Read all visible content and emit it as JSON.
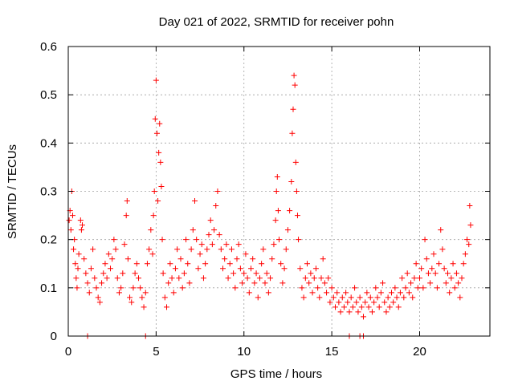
{
  "chart_data": {
    "type": "scatter",
    "title": "Day 021 of 2022, SRMTID for receiver pohn",
    "xlabel": "GPS time / hours",
    "ylabel": "SRMTID / TECUs",
    "xlim": [
      0,
      24
    ],
    "ylim": [
      0,
      0.6
    ],
    "xticks": [
      0,
      5,
      10,
      15,
      20
    ],
    "xtick_labels": [
      "0",
      "5",
      "10",
      "15",
      "20"
    ],
    "yticks": [
      0,
      0.1,
      0.2,
      0.3,
      0.4,
      0.5,
      0.6
    ],
    "ytick_labels": [
      "0",
      "0.1",
      "0.2",
      "0.3",
      "0.4",
      "0.5",
      "0.6"
    ],
    "grid": true,
    "marker": "+",
    "color": "#ff0000",
    "series": [
      {
        "name": "SRMTID",
        "points": [
          [
            0.05,
            0.24
          ],
          [
            0.1,
            0.26
          ],
          [
            0.15,
            0.22
          ],
          [
            0.2,
            0.3
          ],
          [
            0.25,
            0.25
          ],
          [
            0.3,
            0.18
          ],
          [
            0.35,
            0.2
          ],
          [
            0.4,
            0.15
          ],
          [
            0.45,
            0.12
          ],
          [
            0.5,
            0.1
          ],
          [
            0.55,
            0.14
          ],
          [
            0.6,
            0.17
          ],
          [
            0.7,
            0.24
          ],
          [
            0.75,
            0.22
          ],
          [
            0.8,
            0.23
          ],
          [
            0.9,
            0.16
          ],
          [
            1.0,
            0.13
          ],
          [
            1.1,
            0.11
          ],
          [
            1.2,
            0.09
          ],
          [
            1.3,
            0.14
          ],
          [
            1.4,
            0.18
          ],
          [
            1.5,
            0.12
          ],
          [
            1.6,
            0.1
          ],
          [
            1.7,
            0.08
          ],
          [
            1.8,
            0.07
          ],
          [
            1.9,
            0.11
          ],
          [
            2.0,
            0.13
          ],
          [
            2.1,
            0.15
          ],
          [
            2.2,
            0.12
          ],
          [
            2.3,
            0.17
          ],
          [
            2.4,
            0.14
          ],
          [
            2.5,
            0.16
          ],
          [
            2.6,
            0.2
          ],
          [
            2.7,
            0.18
          ],
          [
            2.8,
            0.12
          ],
          [
            2.9,
            0.09
          ],
          [
            3.0,
            0.1
          ],
          [
            3.1,
            0.13
          ],
          [
            3.2,
            0.19
          ],
          [
            3.3,
            0.25
          ],
          [
            3.35,
            0.28
          ],
          [
            3.4,
            0.16
          ],
          [
            3.5,
            0.08
          ],
          [
            3.6,
            0.07
          ],
          [
            3.7,
            0.1
          ],
          [
            3.8,
            0.13
          ],
          [
            3.9,
            0.15
          ],
          [
            4.0,
            0.12
          ],
          [
            4.1,
            0.1
          ],
          [
            4.2,
            0.08
          ],
          [
            4.3,
            0.06
          ],
          [
            4.4,
            0.09
          ],
          [
            4.5,
            0.15
          ],
          [
            4.6,
            0.18
          ],
          [
            4.7,
            0.22
          ],
          [
            4.8,
            0.17
          ],
          [
            4.85,
            0.25
          ],
          [
            4.9,
            0.3
          ],
          [
            4.95,
            0.45
          ],
          [
            5.0,
            0.53
          ],
          [
            5.05,
            0.42
          ],
          [
            5.1,
            0.28
          ],
          [
            5.15,
            0.38
          ],
          [
            5.2,
            0.44
          ],
          [
            5.25,
            0.36
          ],
          [
            5.3,
            0.31
          ],
          [
            5.35,
            0.2
          ],
          [
            5.4,
            0.13
          ],
          [
            5.5,
            0.08
          ],
          [
            5.6,
            0.06
          ],
          [
            5.7,
            0.11
          ],
          [
            5.8,
            0.15
          ],
          [
            5.9,
            0.12
          ],
          [
            6.0,
            0.09
          ],
          [
            6.1,
            0.14
          ],
          [
            6.2,
            0.18
          ],
          [
            6.3,
            0.12
          ],
          [
            6.4,
            0.16
          ],
          [
            6.5,
            0.1
          ],
          [
            6.6,
            0.13
          ],
          [
            6.7,
            0.2
          ],
          [
            6.8,
            0.15
          ],
          [
            6.9,
            0.11
          ],
          [
            7.0,
            0.18
          ],
          [
            7.1,
            0.22
          ],
          [
            7.2,
            0.28
          ],
          [
            7.3,
            0.2
          ],
          [
            7.4,
            0.14
          ],
          [
            7.5,
            0.17
          ],
          [
            7.6,
            0.19
          ],
          [
            7.7,
            0.12
          ],
          [
            7.8,
            0.15
          ],
          [
            7.9,
            0.18
          ],
          [
            8.0,
            0.21
          ],
          [
            8.1,
            0.24
          ],
          [
            8.2,
            0.19
          ],
          [
            8.3,
            0.22
          ],
          [
            8.4,
            0.27
          ],
          [
            8.5,
            0.3
          ],
          [
            8.6,
            0.21
          ],
          [
            8.7,
            0.18
          ],
          [
            8.8,
            0.14
          ],
          [
            8.9,
            0.16
          ],
          [
            9.0,
            0.19
          ],
          [
            9.1,
            0.12
          ],
          [
            9.2,
            0.15
          ],
          [
            9.3,
            0.18
          ],
          [
            9.4,
            0.13
          ],
          [
            9.5,
            0.1
          ],
          [
            9.6,
            0.16
          ],
          [
            9.7,
            0.19
          ],
          [
            9.8,
            0.14
          ],
          [
            9.9,
            0.11
          ],
          [
            10.0,
            0.13
          ],
          [
            10.1,
            0.17
          ],
          [
            10.2,
            0.12
          ],
          [
            10.3,
            0.09
          ],
          [
            10.4,
            0.14
          ],
          [
            10.5,
            0.16
          ],
          [
            10.6,
            0.11
          ],
          [
            10.7,
            0.13
          ],
          [
            10.8,
            0.08
          ],
          [
            10.9,
            0.12
          ],
          [
            11.0,
            0.15
          ],
          [
            11.1,
            0.18
          ],
          [
            11.2,
            0.11
          ],
          [
            11.3,
            0.13
          ],
          [
            11.4,
            0.09
          ],
          [
            11.5,
            0.12
          ],
          [
            11.6,
            0.16
          ],
          [
            11.7,
            0.19
          ],
          [
            11.8,
            0.24
          ],
          [
            11.85,
            0.3
          ],
          [
            11.9,
            0.33
          ],
          [
            11.95,
            0.26
          ],
          [
            12.0,
            0.2
          ],
          [
            12.1,
            0.15
          ],
          [
            12.2,
            0.11
          ],
          [
            12.3,
            0.14
          ],
          [
            12.4,
            0.18
          ],
          [
            12.5,
            0.22
          ],
          [
            12.6,
            0.26
          ],
          [
            12.7,
            0.32
          ],
          [
            12.75,
            0.42
          ],
          [
            12.8,
            0.47
          ],
          [
            12.85,
            0.54
          ],
          [
            12.9,
            0.52
          ],
          [
            12.95,
            0.36
          ],
          [
            13.0,
            0.3
          ],
          [
            13.05,
            0.25
          ],
          [
            13.1,
            0.2
          ],
          [
            13.2,
            0.14
          ],
          [
            13.3,
            0.1
          ],
          [
            13.4,
            0.08
          ],
          [
            13.5,
            0.12
          ],
          [
            13.6,
            0.15
          ],
          [
            13.7,
            0.11
          ],
          [
            13.8,
            0.13
          ],
          [
            13.9,
            0.09
          ],
          [
            14.0,
            0.12
          ],
          [
            14.1,
            0.14
          ],
          [
            14.2,
            0.1
          ],
          [
            14.3,
            0.08
          ],
          [
            14.4,
            0.12
          ],
          [
            14.5,
            0.16
          ],
          [
            14.6,
            0.11
          ],
          [
            14.7,
            0.09
          ],
          [
            14.8,
            0.12
          ],
          [
            14.9,
            0.07
          ],
          [
            15.0,
            0.1
          ],
          [
            15.1,
            0.08
          ],
          [
            15.2,
            0.06
          ],
          [
            15.3,
            0.09
          ],
          [
            15.4,
            0.07
          ],
          [
            15.5,
            0.05
          ],
          [
            15.6,
            0.08
          ],
          [
            15.7,
            0.06
          ],
          [
            15.8,
            0.09
          ],
          [
            15.9,
            0.07
          ],
          [
            16.0,
            0.05
          ],
          [
            16.1,
            0.08
          ],
          [
            16.2,
            0.06
          ],
          [
            16.3,
            0.1
          ],
          [
            16.4,
            0.07
          ],
          [
            16.5,
            0.05
          ],
          [
            16.6,
            0.08
          ],
          [
            16.7,
            0.06
          ],
          [
            16.8,
            0.04
          ],
          [
            16.9,
            0.07
          ],
          [
            17.0,
            0.09
          ],
          [
            17.1,
            0.06
          ],
          [
            17.2,
            0.08
          ],
          [
            17.3,
            0.05
          ],
          [
            17.4,
            0.07
          ],
          [
            17.5,
            0.1
          ],
          [
            17.6,
            0.08
          ],
          [
            17.7,
            0.06
          ],
          [
            17.8,
            0.09
          ],
          [
            17.9,
            0.11
          ],
          [
            18.0,
            0.07
          ],
          [
            18.1,
            0.05
          ],
          [
            18.2,
            0.08
          ],
          [
            18.3,
            0.06
          ],
          [
            18.4,
            0.09
          ],
          [
            18.5,
            0.07
          ],
          [
            18.6,
            0.1
          ],
          [
            18.7,
            0.08
          ],
          [
            18.8,
            0.06
          ],
          [
            18.9,
            0.09
          ],
          [
            19.0,
            0.12
          ],
          [
            19.1,
            0.08
          ],
          [
            19.2,
            0.1
          ],
          [
            19.3,
            0.13
          ],
          [
            19.4,
            0.09
          ],
          [
            19.5,
            0.11
          ],
          [
            19.6,
            0.08
          ],
          [
            19.7,
            0.12
          ],
          [
            19.8,
            0.15
          ],
          [
            19.9,
            0.1
          ],
          [
            20.0,
            0.12
          ],
          [
            20.1,
            0.14
          ],
          [
            20.2,
            0.1
          ],
          [
            20.3,
            0.2
          ],
          [
            20.4,
            0.16
          ],
          [
            20.5,
            0.13
          ],
          [
            20.6,
            0.11
          ],
          [
            20.7,
            0.14
          ],
          [
            20.8,
            0.17
          ],
          [
            20.9,
            0.13
          ],
          [
            21.0,
            0.1
          ],
          [
            21.1,
            0.15
          ],
          [
            21.2,
            0.22
          ],
          [
            21.3,
            0.18
          ],
          [
            21.4,
            0.14
          ],
          [
            21.5,
            0.11
          ],
          [
            21.6,
            0.13
          ],
          [
            21.7,
            0.09
          ],
          [
            21.8,
            0.12
          ],
          [
            21.9,
            0.15
          ],
          [
            22.0,
            0.1
          ],
          [
            22.1,
            0.13
          ],
          [
            22.2,
            0.11
          ],
          [
            22.3,
            0.08
          ],
          [
            22.4,
            0.12
          ],
          [
            22.5,
            0.15
          ],
          [
            22.6,
            0.17
          ],
          [
            22.7,
            0.2
          ],
          [
            22.8,
            0.19
          ],
          [
            22.85,
            0.27
          ],
          [
            22.9,
            0.23
          ],
          [
            1.1,
            0.0
          ],
          [
            4.4,
            0.0
          ],
          [
            16.0,
            0.0
          ],
          [
            16.6,
            0.0
          ],
          [
            16.8,
            0.0
          ]
        ]
      }
    ]
  }
}
